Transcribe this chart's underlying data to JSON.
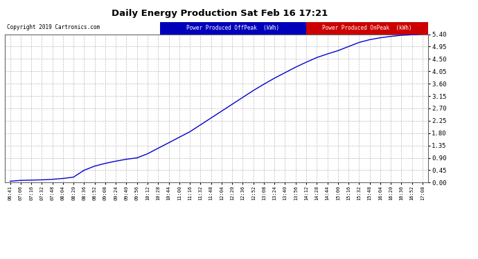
{
  "title": "Daily Energy Production Sat Feb 16 17:21",
  "copyright": "Copyright 2019 Cartronics.com",
  "background_color": "#ffffff",
  "plot_bg_color": "#ffffff",
  "grid_color": "#aaaaaa",
  "line_color_offpeak": "#0000cc",
  "legend_offpeak_label": "Power Produced OffPeak  (kWh)",
  "legend_onpeak_label": "Power Produced OnPeak  (kWh)",
  "legend_offpeak_bg": "#0000bb",
  "legend_onpeak_bg": "#cc0000",
  "ylim": [
    0.0,
    5.4
  ],
  "yticks": [
    0.0,
    0.45,
    0.9,
    1.35,
    1.8,
    2.25,
    2.7,
    3.15,
    3.6,
    4.05,
    4.5,
    4.95,
    5.4
  ],
  "xtick_labels": [
    "06:41",
    "07:06",
    "07:16",
    "07:32",
    "07:48",
    "08:04",
    "08:20",
    "08:36",
    "08:52",
    "09:08",
    "09:24",
    "09:40",
    "09:56",
    "10:12",
    "10:28",
    "10:44",
    "11:00",
    "11:16",
    "11:32",
    "11:48",
    "12:04",
    "12:20",
    "12:36",
    "12:52",
    "13:08",
    "13:24",
    "13:40",
    "13:56",
    "14:12",
    "14:28",
    "14:44",
    "15:00",
    "15:16",
    "15:32",
    "15:48",
    "16:04",
    "16:20",
    "16:36",
    "16:52",
    "17:08"
  ],
  "offpeak_x": [
    0,
    1,
    2,
    3,
    4,
    5,
    6,
    7,
    8,
    9,
    10,
    11,
    12,
    13,
    14,
    15,
    16,
    17,
    18,
    19,
    20,
    21,
    22,
    23,
    24,
    25,
    26,
    27,
    28,
    29,
    30,
    31,
    32,
    33,
    34,
    35,
    36,
    37,
    38,
    39
  ],
  "offpeak_y": [
    0.05,
    0.08,
    0.09,
    0.1,
    0.12,
    0.15,
    0.2,
    0.45,
    0.6,
    0.7,
    0.78,
    0.85,
    0.9,
    1.05,
    1.25,
    1.45,
    1.65,
    1.85,
    2.1,
    2.35,
    2.6,
    2.85,
    3.1,
    3.35,
    3.58,
    3.8,
    4.0,
    4.2,
    4.38,
    4.55,
    4.68,
    4.8,
    4.95,
    5.1,
    5.2,
    5.27,
    5.32,
    5.36,
    5.38,
    5.4
  ]
}
